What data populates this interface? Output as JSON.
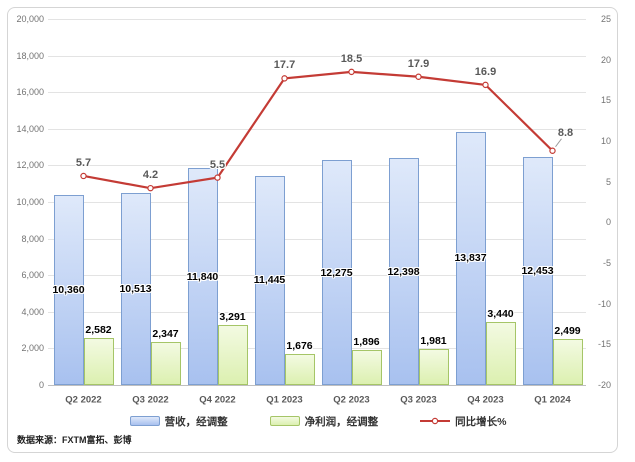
{
  "source_note": "数据来源：FXTM富拓、彭博",
  "colors": {
    "bar_blue_top": "#dfe9fa",
    "bar_blue_bottom": "#a8c1ef",
    "bar_blue_border": "#7d9fd1",
    "bar_green_top": "#f3fae2",
    "bar_green_bottom": "#dcf0b0",
    "bar_green_border": "#a5c567",
    "line_red": "#c43b35",
    "gridline": "#e3e3e3",
    "axis_line": "#bfbfbf",
    "axis_text": "#737373",
    "label_text": "#595959",
    "leader_line": "#999999"
  },
  "chart_data": {
    "type": "combo-bar-line",
    "categories": [
      "Q2 2022",
      "Q3 2022",
      "Q4 2022",
      "Q1 2023",
      "Q2 2023",
      "Q3 2023",
      "Q4 2023",
      "Q1 2024"
    ],
    "series": [
      {
        "name": "营收，经调整",
        "type": "bar",
        "axis": "left",
        "color_key": "blue",
        "label_position": "inside-center",
        "values": [
          10360,
          10513,
          11840,
          11445,
          12275,
          12398,
          13837,
          12453
        ]
      },
      {
        "name": "净利润，经调整",
        "type": "bar",
        "axis": "left",
        "color_key": "green",
        "label_position": "outside-top",
        "values": [
          2582,
          2347,
          3291,
          1676,
          1896,
          1981,
          3440,
          2499
        ]
      },
      {
        "name": "同比增长%",
        "type": "line",
        "axis": "right",
        "color_key": "red",
        "marker": "open-circle",
        "values": [
          5.7,
          4.2,
          5.5,
          17.7,
          18.5,
          17.9,
          16.9,
          8.8
        ],
        "last_label_has_leader": true
      }
    ],
    "left_axis": {
      "min": 0,
      "max": 20000,
      "step": 2000
    },
    "right_axis": {
      "min": -20,
      "max": 25,
      "step": 5
    },
    "grid": "horizontal",
    "legend_position": "bottom",
    "title": ""
  }
}
